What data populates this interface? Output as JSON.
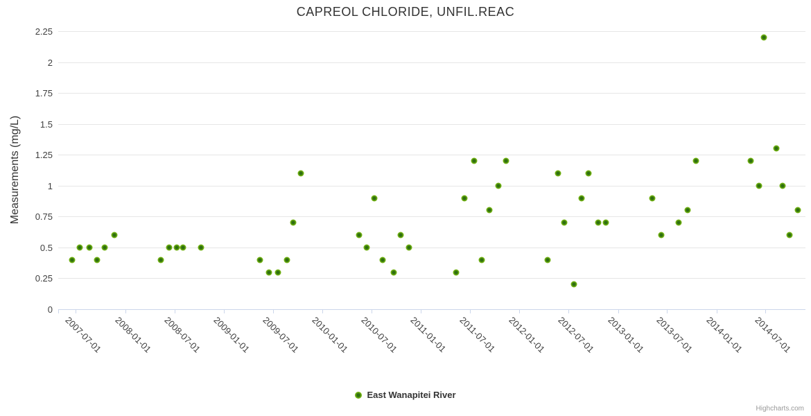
{
  "meta": {
    "credits": "Highcharts.com"
  },
  "chart_data": {
    "type": "scatter",
    "title": "CAPREOL CHLORIDE, UNFIL.REAC",
    "xlabel": "",
    "ylabel": "Measurements (mg/L)",
    "ylim": [
      0,
      2.25
    ],
    "y_ticks": [
      0,
      0.25,
      0.5,
      0.75,
      1,
      1.25,
      1.5,
      1.75,
      2,
      2.25
    ],
    "x_tick_labels": [
      "2007-07-01",
      "2008-01-01",
      "2008-07-01",
      "2009-01-01",
      "2009-07-01",
      "2010-01-01",
      "2010-07-01",
      "2011-01-01",
      "2011-07-01",
      "2012-01-01",
      "2012-07-01",
      "2013-01-01",
      "2013-07-01",
      "2014-01-01",
      "2014-07-01"
    ],
    "x_range": [
      "2007-04-27",
      "2014-11-26"
    ],
    "grid": true,
    "legend_position": "bottom-center",
    "colors": {
      "marker_outer": "#72b211",
      "marker_core": "#2e6f10",
      "grid": "#e6e6e6",
      "axis": "#ccd6eb",
      "title": "#333333",
      "labels": "#3f3f3f",
      "credits": "#999999"
    },
    "series": [
      {
        "name": "East Wanapitei River",
        "points": [
          [
            "2007-06-17",
            0.4
          ],
          [
            "2007-07-16",
            0.5
          ],
          [
            "2007-08-20",
            0.5
          ],
          [
            "2007-09-19",
            0.4
          ],
          [
            "2007-10-17",
            0.5
          ],
          [
            "2007-11-20",
            0.6
          ],
          [
            "2008-05-12",
            0.4
          ],
          [
            "2008-06-12",
            0.5
          ],
          [
            "2008-07-10",
            0.5
          ],
          [
            "2008-08-02",
            0.5
          ],
          [
            "2008-10-08",
            0.5
          ],
          [
            "2009-05-13",
            0.4
          ],
          [
            "2009-06-17",
            0.3
          ],
          [
            "2009-07-20",
            0.3
          ],
          [
            "2009-08-21",
            0.4
          ],
          [
            "2009-09-15",
            0.7
          ],
          [
            "2009-10-13",
            1.1
          ],
          [
            "2010-05-15",
            0.6
          ],
          [
            "2010-06-13",
            0.5
          ],
          [
            "2010-07-11",
            0.9
          ],
          [
            "2010-08-11",
            0.4
          ],
          [
            "2010-09-21",
            0.3
          ],
          [
            "2010-10-18",
            0.6
          ],
          [
            "2010-11-17",
            0.5
          ],
          [
            "2011-05-12",
            0.3
          ],
          [
            "2011-06-10",
            0.9
          ],
          [
            "2011-07-16",
            1.2
          ],
          [
            "2011-08-14",
            0.4
          ],
          [
            "2011-09-11",
            0.8
          ],
          [
            "2011-10-15",
            1.0
          ],
          [
            "2011-11-11",
            1.2
          ],
          [
            "2012-04-15",
            0.4
          ],
          [
            "2012-05-22",
            1.1
          ],
          [
            "2012-06-16",
            0.7
          ],
          [
            "2012-07-21",
            0.2
          ],
          [
            "2012-08-18",
            0.9
          ],
          [
            "2012-09-13",
            1.1
          ],
          [
            "2012-10-18",
            0.7
          ],
          [
            "2012-11-15",
            0.7
          ],
          [
            "2013-05-08",
            0.9
          ],
          [
            "2013-06-10",
            0.6
          ],
          [
            "2013-08-12",
            0.7
          ],
          [
            "2013-09-14",
            0.8
          ],
          [
            "2013-10-17",
            1.2
          ],
          [
            "2014-05-06",
            1.2
          ],
          [
            "2014-06-07",
            1.0
          ],
          [
            "2014-06-25",
            2.2
          ],
          [
            "2014-08-10",
            1.3
          ],
          [
            "2014-09-01",
            1.0
          ],
          [
            "2014-09-28",
            0.6
          ],
          [
            "2014-10-28",
            0.8
          ]
        ]
      }
    ]
  }
}
